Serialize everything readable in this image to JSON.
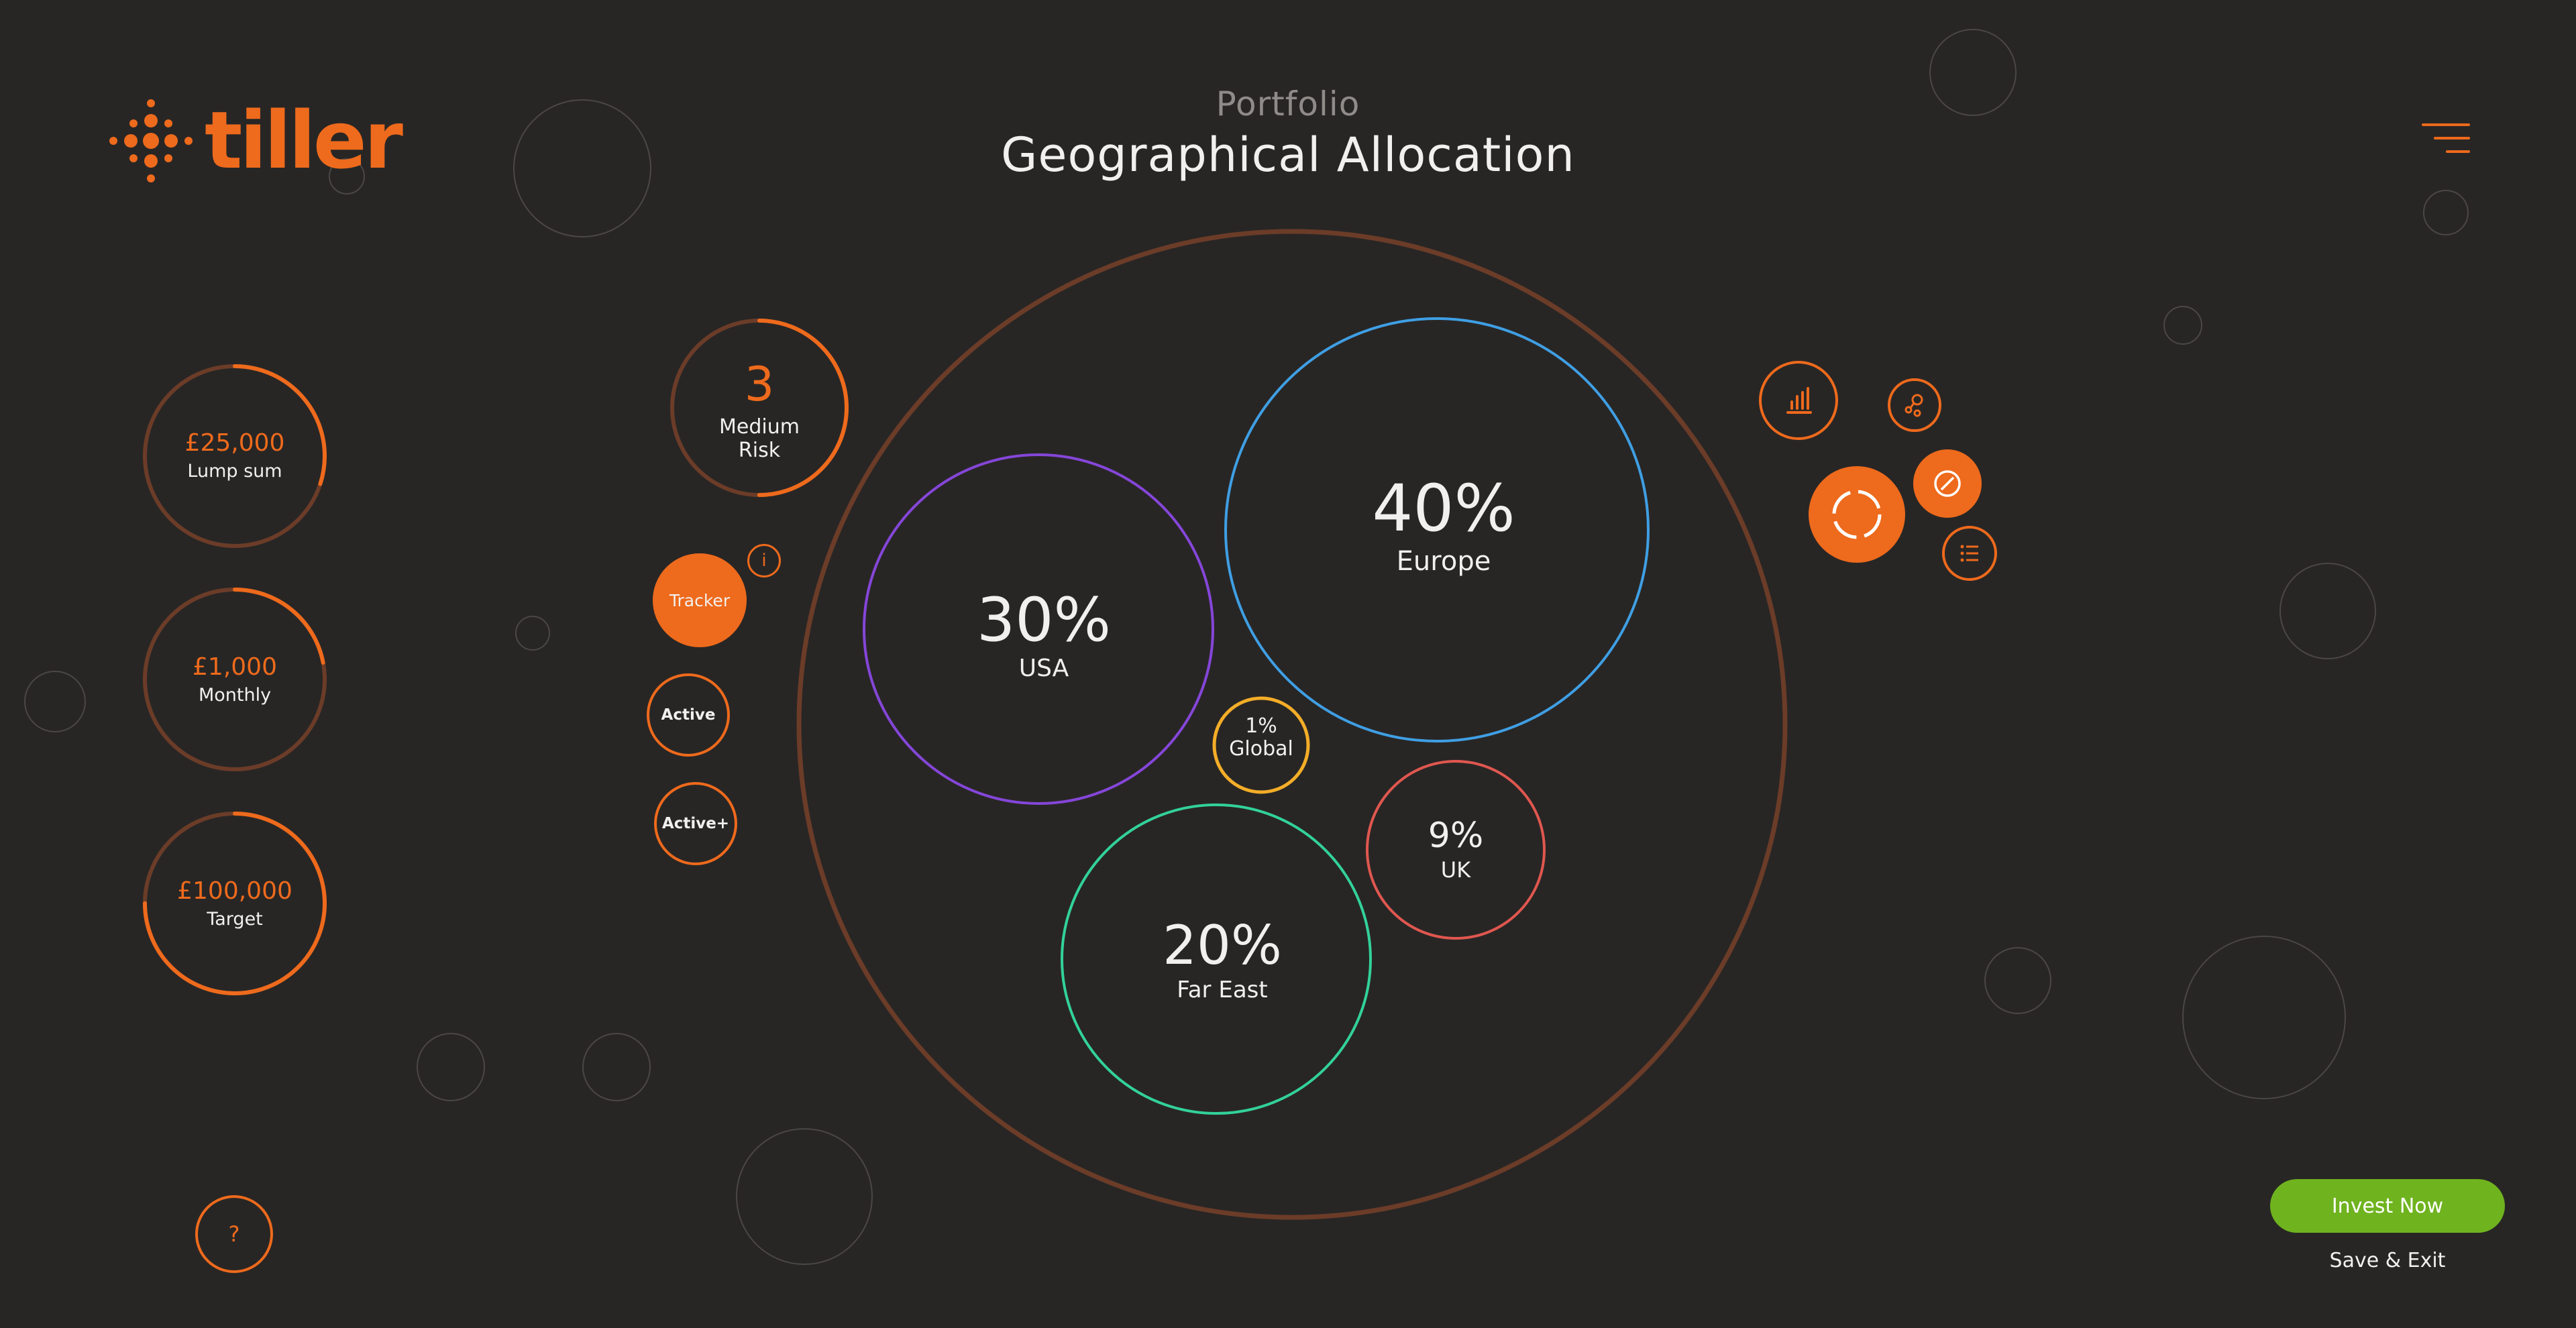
{
  "brand": {
    "name": "tiller"
  },
  "header": {
    "section": "Portfolio",
    "title": "Geographical Allocation"
  },
  "inputs": {
    "lump_sum": {
      "amount": "£25,000",
      "label": "Lump sum",
      "progress": 0.3
    },
    "monthly": {
      "amount": "£1,000",
      "label": "Monthly",
      "progress": 0.22
    },
    "target": {
      "amount": "£100,000",
      "label": "Target",
      "progress": 0.75
    }
  },
  "risk": {
    "level": "3",
    "label_line1": "Medium",
    "label_line2": "Risk",
    "progress": 0.5
  },
  "strategies": [
    {
      "label": "Tracker",
      "selected": true
    },
    {
      "label": "Active",
      "selected": false
    },
    {
      "label": "Active+",
      "selected": false
    }
  ],
  "strategy_info_icon": "info-icon",
  "allocation": [
    {
      "region": "Europe",
      "percent": "40%",
      "color": "#3f9fe4"
    },
    {
      "region": "USA",
      "percent": "30%",
      "color": "#8546d9"
    },
    {
      "region": "Far East",
      "percent": "20%",
      "color": "#32d29a"
    },
    {
      "region": "UK",
      "percent": "9%",
      "color": "#e0574f"
    },
    {
      "region": "Global",
      "percent": "1%",
      "color": "#f3ad28"
    }
  ],
  "tools": {
    "chart": "bar-chart-icon",
    "share": "share-icon",
    "allocation": "allocation-donut-icon",
    "compass": "compass-icon",
    "list": "list-icon",
    "menu": "menu-icon"
  },
  "actions": {
    "invest_label": "Invest Now",
    "save_exit_label": "Save & Exit",
    "help_label": "?"
  },
  "colors": {
    "accent": "#ee6a1c",
    "background": "#282625",
    "invest": "#6fb31f",
    "outer_ring": "#6b3c28"
  }
}
